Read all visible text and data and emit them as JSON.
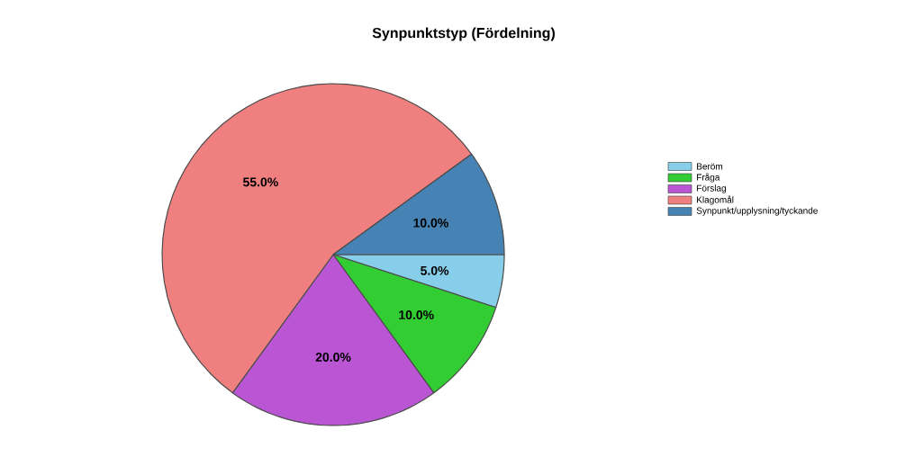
{
  "chart_data": {
    "type": "pie",
    "title": "Synpunktstyp (Fördelning)",
    "categories": [
      "Beröm",
      "Fråga",
      "Förslag",
      "Klagomål",
      "Synpunkt/upplysning/tyckande"
    ],
    "values": [
      5,
      10,
      20,
      55,
      10
    ],
    "colors": [
      "#87ceeb",
      "#32cd32",
      "#ba55d3",
      "#f08080",
      "#4682b4"
    ],
    "value_labels": [
      "5.0%",
      "10.0%",
      "20.0%",
      "55.0%",
      "10.0%"
    ],
    "legend": "top right"
  }
}
